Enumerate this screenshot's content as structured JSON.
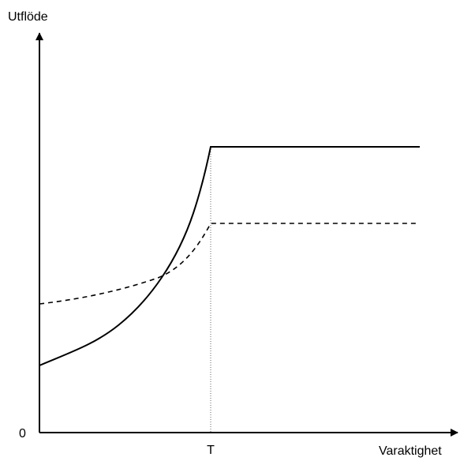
{
  "axes": {
    "y_label": "Utflöde",
    "x_label": "Varaktighet",
    "origin_label": "0",
    "x_marker_label": "T"
  }
}
